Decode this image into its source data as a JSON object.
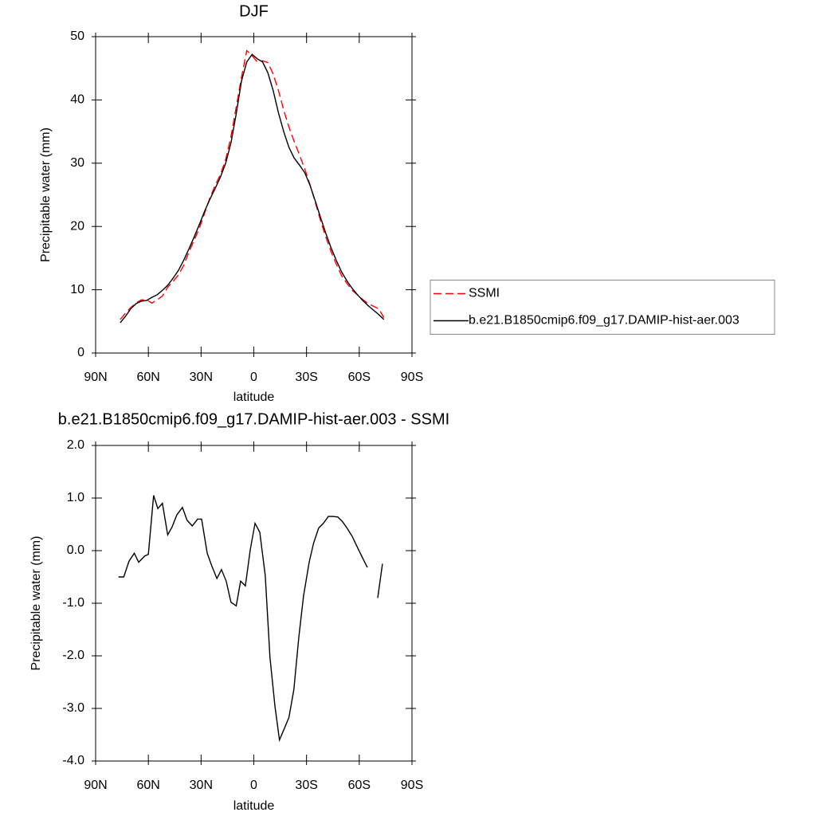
{
  "chart_data": [
    {
      "type": "line",
      "title": "DJF",
      "xlabel": "latitude",
      "ylabel": "Precipitable water (mm)",
      "x": [
        76,
        73,
        70,
        67,
        64,
        61,
        58,
        55,
        52,
        49,
        46,
        43,
        40,
        37,
        34,
        31,
        28,
        25,
        22,
        19,
        16,
        13,
        10,
        7,
        4,
        1,
        -2,
        -5,
        -8,
        -11,
        -14,
        -17,
        -20,
        -23,
        -26,
        -29,
        -32,
        -35,
        -38,
        -41,
        -44,
        -47,
        -50,
        -53,
        -56,
        -59,
        -62,
        -65,
        -68,
        -71,
        -74
      ],
      "series": [
        {
          "name": "SSMI",
          "color": "#ff0000",
          "line_style": "dashed",
          "values": [
            5.3,
            6.3,
            7.2,
            7.9,
            8.4,
            8.4,
            7.9,
            8.4,
            9.0,
            10.4,
            11.3,
            12.3,
            13.8,
            15.9,
            17.8,
            19.7,
            22.1,
            24.5,
            26.5,
            28.2,
            30.6,
            34.2,
            38.9,
            43.6,
            47.8,
            47.0,
            46.0,
            46.2,
            45.9,
            44.1,
            41.5,
            38.4,
            35.7,
            33.4,
            31.3,
            29.1,
            26.6,
            23.8,
            20.9,
            18.3,
            16.0,
            14.0,
            12.2,
            11.0,
            9.9,
            9.2,
            8.45,
            7.8,
            7.4,
            7.0,
            5.6
          ]
        },
        {
          "name": "b.e21.B1850cmip6.f09_g17.DAMIP-hist-aer.003",
          "color": "#000000",
          "line_style": "solid",
          "values": [
            4.8,
            5.8,
            7.0,
            7.8,
            8.2,
            8.3,
            8.8,
            9.2,
            9.9,
            10.7,
            11.8,
            13.0,
            14.6,
            16.4,
            18.3,
            20.3,
            22.4,
            24.3,
            26.0,
            27.8,
            30.0,
            33.2,
            37.8,
            43.0,
            46.0,
            47.2,
            46.5,
            46.0,
            44.3,
            41.5,
            38.0,
            35.0,
            32.5,
            30.8,
            29.7,
            28.5,
            26.5,
            24.0,
            21.4,
            18.9,
            16.6,
            14.6,
            12.8,
            11.4,
            10.2,
            9.2,
            8.3,
            7.5,
            6.8,
            6.1,
            5.3
          ]
        }
      ],
      "xlim": [
        90,
        -90
      ],
      "xticks": [
        {
          "value": 90,
          "label": "90N"
        },
        {
          "value": 60,
          "label": "60N"
        },
        {
          "value": 30,
          "label": "30N"
        },
        0,
        {
          "value": -30,
          "label": "30S"
        },
        {
          "value": -60,
          "label": "60S"
        },
        {
          "value": -90,
          "label": "90S"
        }
      ],
      "ylim": [
        0,
        50
      ],
      "yticks": [
        0,
        10,
        20,
        30,
        40,
        50
      ],
      "legend": "right"
    },
    {
      "type": "line",
      "title": "b.e21.B1850cmip6.f09_g17.DAMIP-hist-aer.003 - SSMI",
      "xlabel": "latitude",
      "ylabel": "Precipitable water (mm)",
      "x": [
        77,
        74,
        71,
        68,
        65.5,
        62,
        60,
        57,
        54.6,
        52,
        49,
        46.5,
        43.8,
        40.6,
        38,
        35,
        32,
        29.7,
        26.5,
        23.8,
        21,
        18.4,
        15.7,
        13,
        10,
        7.5,
        4.8,
        2,
        -0.7,
        -3.4,
        -6.5,
        -9.2,
        -12,
        -14.6,
        -17.4,
        -20,
        -22.8,
        -25.6,
        -28.3,
        -31.5,
        -34,
        -36.9,
        -39.6,
        -42.4,
        -45,
        -47.8,
        -50.5,
        -53.2,
        -56,
        -58.7,
        -61.9,
        -64.6,
        -67.5,
        -70.5,
        -73.2
      ],
      "values": [
        -0.5,
        -0.5,
        -0.2,
        -0.05,
        -0.22,
        -0.1,
        -0.07,
        1.05,
        0.8,
        0.9,
        0.3,
        0.45,
        0.68,
        0.82,
        0.58,
        0.47,
        0.6,
        0.6,
        -0.05,
        -0.3,
        -0.53,
        -0.36,
        -0.58,
        -0.98,
        -1.05,
        -0.58,
        -0.67,
        0.02,
        0.52,
        0.35,
        -0.47,
        -2.03,
        -2.95,
        -3.6,
        -3.38,
        -3.17,
        -2.64,
        -1.65,
        -0.86,
        -0.22,
        0.14,
        0.43,
        0.52,
        0.65,
        0.65,
        0.64,
        0.55,
        0.42,
        0.27,
        0.08,
        -0.14,
        -0.32,
        null,
        -0.9,
        -0.25
      ],
      "color": "#000000",
      "xlim": [
        90,
        -90
      ],
      "xticks": [
        {
          "value": 90,
          "label": "90N"
        },
        {
          "value": 60,
          "label": "60N"
        },
        {
          "value": 30,
          "label": "30N"
        },
        0,
        {
          "value": -30,
          "label": "30S"
        },
        {
          "value": -60,
          "label": "60S"
        },
        {
          "value": -90,
          "label": "90S"
        }
      ],
      "ylim": [
        -4,
        2
      ],
      "yticks": [
        {
          "value": 2,
          "label": "2.0"
        },
        {
          "value": 1,
          "label": "1.0"
        },
        {
          "value": 0,
          "label": "0.0"
        },
        {
          "value": -1,
          "label": "-1.0"
        },
        {
          "value": -2,
          "label": "-2.0"
        },
        {
          "value": -3,
          "label": "-3.0"
        },
        {
          "value": -4,
          "label": "-4.0"
        }
      ]
    }
  ]
}
